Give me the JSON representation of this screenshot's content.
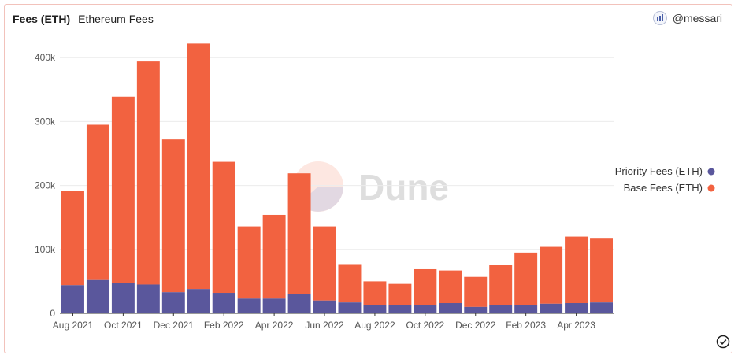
{
  "header": {
    "title": "Fees (ETH)",
    "subtitle": "Ethereum Fees"
  },
  "brand": {
    "handle": "@messari",
    "icon": "messari-logo-icon"
  },
  "watermark": {
    "text": "Dune"
  },
  "footer": {
    "icon": "check-circle-icon"
  },
  "colors": {
    "priority": "#5a579c",
    "base": "#f26240",
    "grid": "#ececec",
    "axis": "#555555"
  },
  "chart_data": {
    "type": "bar",
    "stacked": true,
    "title": "Fees (ETH)",
    "subtitle": "Ethereum Fees",
    "xlabel": "",
    "ylabel": "",
    "ylim": [
      0,
      420000
    ],
    "y_ticks": [
      {
        "value": 0,
        "label": "0"
      },
      {
        "value": 100000,
        "label": "100k"
      },
      {
        "value": 200000,
        "label": "200k"
      },
      {
        "value": 300000,
        "label": "300k"
      },
      {
        "value": 400000,
        "label": "400k"
      }
    ],
    "x_tick_labels": [
      "Aug 2021",
      "Oct 2021",
      "Dec 2021",
      "Feb 2022",
      "Apr 2022",
      "Jun 2022",
      "Aug 2022",
      "Oct 2022",
      "Dec 2022",
      "Feb 2023",
      "Apr 2023"
    ],
    "categories": [
      "2021-08",
      "2021-09",
      "2021-10",
      "2021-11",
      "2021-12",
      "2022-01",
      "2022-02",
      "2022-03",
      "2022-04",
      "2022-05",
      "2022-06",
      "2022-07",
      "2022-08",
      "2022-09",
      "2022-10",
      "2022-11",
      "2022-12",
      "2023-01",
      "2023-02",
      "2023-03",
      "2023-04",
      "2023-05"
    ],
    "series": [
      {
        "name": "Priority Fees (ETH)",
        "color": "#5a579c",
        "values": [
          44000,
          52000,
          47000,
          45000,
          33000,
          38000,
          32000,
          23000,
          23000,
          30000,
          20000,
          17000,
          13000,
          13000,
          13000,
          16000,
          10000,
          13000,
          13000,
          15000,
          16000,
          17000
        ]
      },
      {
        "name": "Base Fees (ETH)",
        "color": "#f26240",
        "values": [
          147000,
          243000,
          292000,
          349000,
          239000,
          384000,
          205000,
          113000,
          131000,
          189000,
          116000,
          60000,
          37000,
          33000,
          56000,
          51000,
          47000,
          63000,
          82000,
          89000,
          104000,
          101000
        ]
      }
    ],
    "legend": {
      "position": "right"
    },
    "grid": true
  }
}
